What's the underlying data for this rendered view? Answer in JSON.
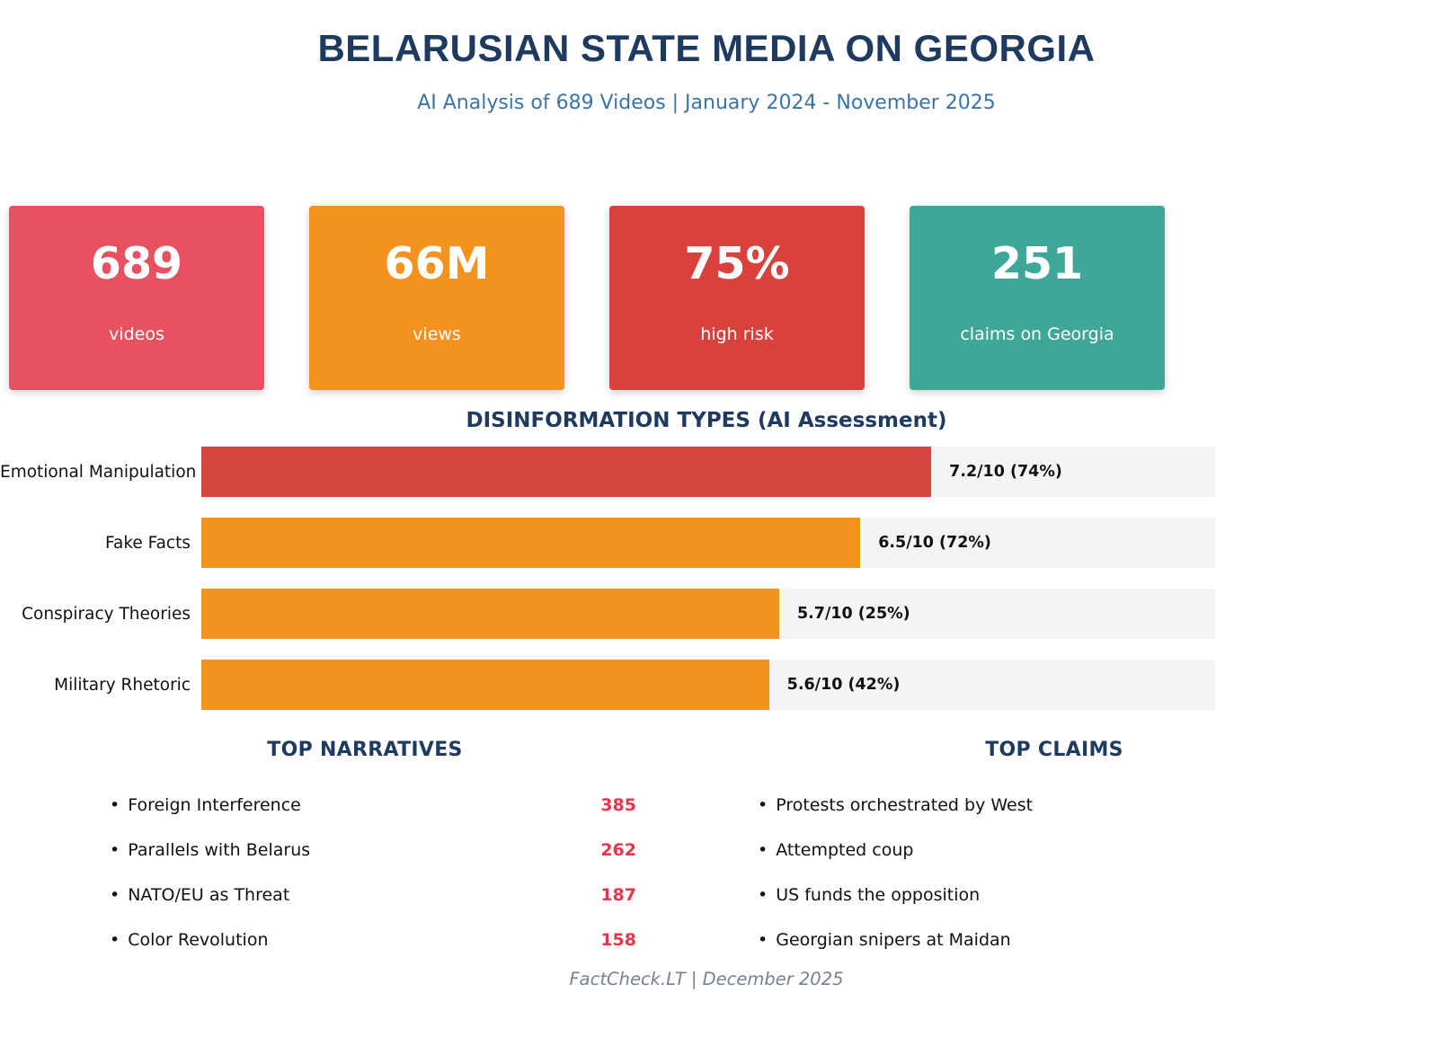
{
  "header": {
    "title": "BELARUSIAN STATE MEDIA ON GEORGIA",
    "subtitle": "AI Analysis of 689 Videos | January 2024 - November 2025"
  },
  "stat_cards": [
    {
      "value": "689",
      "label": "videos",
      "color": "#e8515f"
    },
    {
      "value": "66M",
      "label": "views",
      "color": "#f3921e"
    },
    {
      "value": "75%",
      "label": "high risk",
      "color": "#d8413c"
    },
    {
      "value": "251",
      "label": "claims on Georgia",
      "color": "#3fa797"
    }
  ],
  "chart_data": {
    "type": "bar",
    "orientation": "horizontal",
    "title": "DISINFORMATION TYPES (AI Assessment)",
    "xlabel": "",
    "ylabel": "",
    "xlim": [
      0,
      10
    ],
    "grid": false,
    "track_color": "#f2f4f6",
    "categories": [
      "Emotional Manipulation",
      "Fake Facts",
      "Conspiracy Theories",
      "Military Rhetoric"
    ],
    "rows": [
      {
        "label": "Emotional Manipulation",
        "score": 7.2,
        "max": 10,
        "percent": 74,
        "value_label": "7.2/10 (74%)",
        "color": "#d6453f"
      },
      {
        "label": "Fake Facts",
        "score": 6.5,
        "max": 10,
        "percent": 72,
        "value_label": "6.5/10 (72%)",
        "color": "#f3921e"
      },
      {
        "label": "Conspiracy Theories",
        "score": 5.7,
        "max": 10,
        "percent": 25,
        "value_label": "5.7/10 (25%)",
        "color": "#f3921e"
      },
      {
        "label": "Military Rhetoric",
        "score": 5.6,
        "max": 10,
        "percent": 42,
        "value_label": "5.6/10 (42%)",
        "color": "#f3921e"
      }
    ]
  },
  "bullet_char": "•",
  "narratives": {
    "heading": "TOP NARRATIVES",
    "items": [
      {
        "label": "Foreign Interference",
        "count": "385"
      },
      {
        "label": "Parallels with Belarus",
        "count": "262"
      },
      {
        "label": "NATO/EU as Threat",
        "count": "187"
      },
      {
        "label": "Color Revolution",
        "count": "158"
      }
    ]
  },
  "claims": {
    "heading": "TOP CLAIMS",
    "items": [
      {
        "label": "Protests orchestrated by West"
      },
      {
        "label": "Attempted coup"
      },
      {
        "label": "US funds the opposition"
      },
      {
        "label": "Georgian snipers at Maidan"
      }
    ]
  },
  "footer": {
    "text": "FactCheck.LT | December 2025"
  },
  "colors": {
    "title_navy": "#1e3a5f",
    "subtitle_blue": "#3a74a4",
    "count_red": "#e8354a",
    "footer_gray": "#78828c"
  }
}
